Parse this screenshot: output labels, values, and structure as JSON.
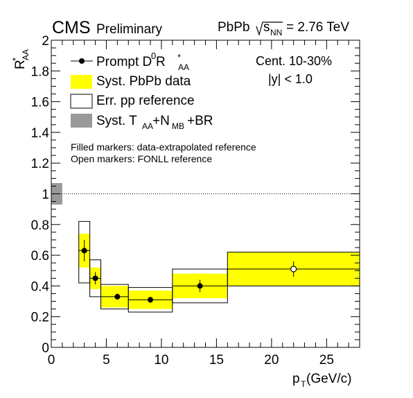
{
  "header": {
    "experiment": "CMS",
    "status": "Preliminary",
    "system": "PbPb",
    "sqrt_base": "s",
    "sqrt_sub": "NN",
    "energy": "= 2.76 TeV"
  },
  "info": {
    "centrality": "Cent. 10-30%",
    "rapidity": "|y| < 1.0"
  },
  "notes": {
    "filled": "Filled markers: data-extrapolated reference",
    "open": "Open markers: FONLL reference"
  },
  "legend": {
    "prompt": {
      "a": "Prompt D",
      "sup0": "0",
      "b": " R",
      "sup": "*",
      "sub": "AA"
    },
    "syst_pbpb": "Syst. PbPb data",
    "err_pp": "Err. pp reference",
    "syst_taa": {
      "a": "Syst. T",
      "sub1": "AA",
      "b": "+N",
      "sub2": "MB",
      "c": "+BR"
    }
  },
  "axes": {
    "x": {
      "label": "p",
      "label_sub": "T",
      "label_unit": " (GeV/c)"
    },
    "y": {
      "label": "R",
      "label_sup": "*",
      "label_sub": "AA"
    }
  },
  "colors": {
    "syst_pbpb": "#ffff00",
    "syst_norm": "#999999",
    "marker": "#000000"
  },
  "chart_data": {
    "type": "scatter",
    "xlim": [
      0,
      28
    ],
    "ylim": [
      0,
      2
    ],
    "x_ticks": [
      0,
      5,
      10,
      15,
      20,
      25
    ],
    "y_ticks": [
      0,
      0.2,
      0.4,
      0.6,
      0.8,
      1,
      1.2,
      1.4,
      1.6,
      1.8,
      2
    ],
    "x_tick_labels": [
      "0",
      "5",
      "10",
      "15",
      "20",
      "25"
    ],
    "y_tick_labels": [
      "0",
      "0.2",
      "0.4",
      "0.6",
      "0.8",
      "1",
      "1.2",
      "1.4",
      "1.6",
      "1.8",
      "2"
    ],
    "reference_line": 1.0,
    "global_norm_syst": [
      0.93,
      1.07
    ],
    "points": [
      {
        "x": 3.0,
        "xlow": 2.5,
        "xhigh": 3.5,
        "y": 0.63,
        "stat_low": 0.56,
        "stat_high": 0.7,
        "syst_low": 0.52,
        "syst_high": 0.74,
        "pp_low": 0.42,
        "pp_high": 0.82,
        "marker": "filled"
      },
      {
        "x": 4.0,
        "xlow": 3.5,
        "xhigh": 4.5,
        "y": 0.45,
        "stat_low": 0.41,
        "stat_high": 0.49,
        "syst_low": 0.38,
        "syst_high": 0.52,
        "pp_low": 0.33,
        "pp_high": 0.57,
        "marker": "filled"
      },
      {
        "x": 6.0,
        "xlow": 4.5,
        "xhigh": 7.0,
        "y": 0.33,
        "stat_low": 0.31,
        "stat_high": 0.35,
        "syst_low": 0.26,
        "syst_high": 0.4,
        "pp_low": 0.25,
        "pp_high": 0.41,
        "marker": "filled"
      },
      {
        "x": 9.0,
        "xlow": 7.0,
        "xhigh": 11.0,
        "y": 0.31,
        "stat_low": 0.29,
        "stat_high": 0.33,
        "syst_low": 0.25,
        "syst_high": 0.37,
        "pp_low": 0.23,
        "pp_high": 0.39,
        "marker": "filled"
      },
      {
        "x": 13.5,
        "xlow": 11.0,
        "xhigh": 16.0,
        "y": 0.4,
        "stat_low": 0.36,
        "stat_high": 0.44,
        "syst_low": 0.32,
        "syst_high": 0.48,
        "pp_low": 0.29,
        "pp_high": 0.51,
        "marker": "filled"
      },
      {
        "x": 22.0,
        "xlow": 16.0,
        "xhigh": 28.0,
        "y": 0.51,
        "stat_low": 0.46,
        "stat_high": 0.56,
        "syst_low": 0.4,
        "syst_high": 0.62,
        "pp_low": 0.4,
        "pp_high": 0.62,
        "marker": "open"
      }
    ]
  }
}
